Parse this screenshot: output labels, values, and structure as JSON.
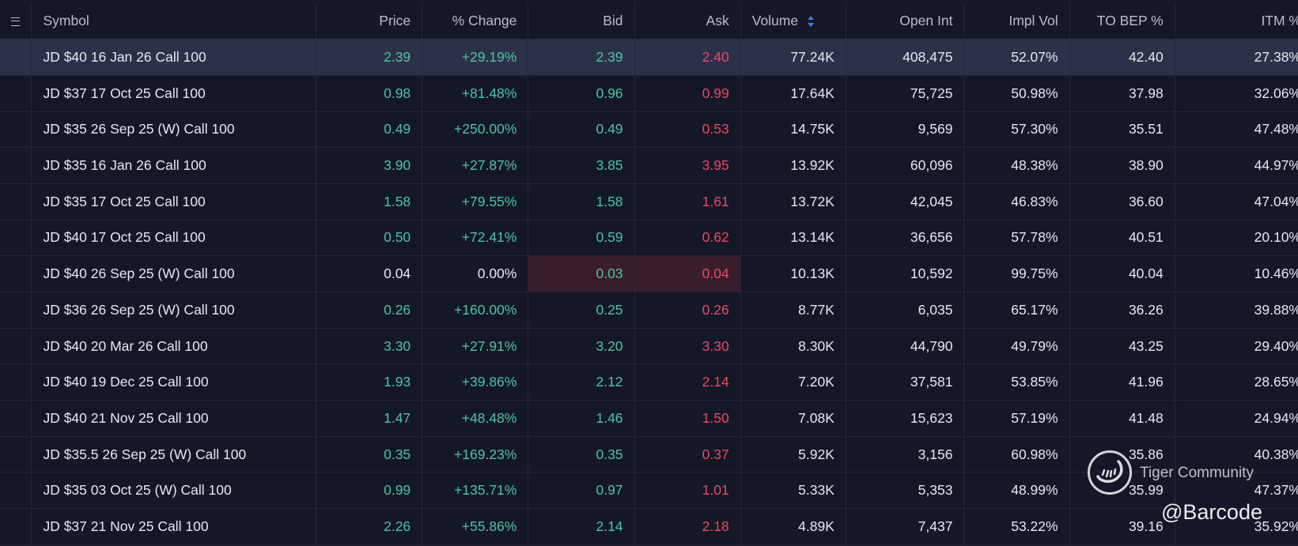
{
  "columns": [
    {
      "key": "symbol",
      "label": "Symbol"
    },
    {
      "key": "price",
      "label": "Price"
    },
    {
      "key": "change",
      "label": "% Change"
    },
    {
      "key": "bid",
      "label": "Bid"
    },
    {
      "key": "ask",
      "label": "Ask"
    },
    {
      "key": "volume",
      "label": "Volume"
    },
    {
      "key": "open_int",
      "label": "Open Int"
    },
    {
      "key": "impl_vol",
      "label": "Impl Vol"
    },
    {
      "key": "to_bep",
      "label": "TO BEP %"
    },
    {
      "key": "itm",
      "label": "ITM %"
    }
  ],
  "sorted_column": "volume",
  "colors": {
    "positive": "#4fc3a1",
    "negative": "#e8486a",
    "neutral": "#e6e8ef",
    "selected_row": "#2b3149",
    "flash_cell": "#3a1d2b",
    "sort_indicator": "#4a78d8"
  },
  "rows": [
    {
      "symbol": "JD $40 16 Jan 26 Call 100",
      "price": "2.39",
      "change": "+29.19%",
      "bid": "2.39",
      "ask": "2.40",
      "volume": "77.24K",
      "open_int": "408,475",
      "impl_vol": "52.07%",
      "to_bep": "42.40",
      "itm": "27.38%",
      "selected": true
    },
    {
      "symbol": "JD $37 17 Oct 25 Call 100",
      "price": "0.98",
      "change": "+81.48%",
      "bid": "0.96",
      "ask": "0.99",
      "volume": "17.64K",
      "open_int": "75,725",
      "impl_vol": "50.98%",
      "to_bep": "37.98",
      "itm": "32.06%"
    },
    {
      "symbol": "JD $35 26 Sep 25 (W) Call 100",
      "price": "0.49",
      "change": "+250.00%",
      "bid": "0.49",
      "ask": "0.53",
      "volume": "14.75K",
      "open_int": "9,569",
      "impl_vol": "57.30%",
      "to_bep": "35.51",
      "itm": "47.48%"
    },
    {
      "symbol": "JD $35 16 Jan 26 Call 100",
      "price": "3.90",
      "change": "+27.87%",
      "bid": "3.85",
      "ask": "3.95",
      "volume": "13.92K",
      "open_int": "60,096",
      "impl_vol": "48.38%",
      "to_bep": "38.90",
      "itm": "44.97%"
    },
    {
      "symbol": "JD $35 17 Oct 25 Call 100",
      "price": "1.58",
      "change": "+79.55%",
      "bid": "1.58",
      "ask": "1.61",
      "volume": "13.72K",
      "open_int": "42,045",
      "impl_vol": "46.83%",
      "to_bep": "36.60",
      "itm": "47.04%"
    },
    {
      "symbol": "JD $40 17 Oct 25 Call 100",
      "price": "0.50",
      "change": "+72.41%",
      "bid": "0.59",
      "ask": "0.62",
      "volume": "13.14K",
      "open_int": "36,656",
      "impl_vol": "57.78%",
      "to_bep": "40.51",
      "itm": "20.10%"
    },
    {
      "symbol": "JD $40 26 Sep 25 (W) Call 100",
      "price": "0.04",
      "change": "0.00%",
      "bid": "0.03",
      "ask": "0.04",
      "volume": "10.13K",
      "open_int": "10,592",
      "impl_vol": "99.75%",
      "to_bep": "40.04",
      "itm": "10.46%",
      "neutral": true,
      "flash": true
    },
    {
      "symbol": "JD $36 26 Sep 25 (W) Call 100",
      "price": "0.26",
      "change": "+160.00%",
      "bid": "0.25",
      "ask": "0.26",
      "volume": "8.77K",
      "open_int": "6,035",
      "impl_vol": "65.17%",
      "to_bep": "36.26",
      "itm": "39.88%"
    },
    {
      "symbol": "JD $40 20 Mar 26 Call 100",
      "price": "3.30",
      "change": "+27.91%",
      "bid": "3.20",
      "ask": "3.30",
      "volume": "8.30K",
      "open_int": "44,790",
      "impl_vol": "49.79%",
      "to_bep": "43.25",
      "itm": "29.40%"
    },
    {
      "symbol": "JD $40 19 Dec 25 Call 100",
      "price": "1.93",
      "change": "+39.86%",
      "bid": "2.12",
      "ask": "2.14",
      "volume": "7.20K",
      "open_int": "37,581",
      "impl_vol": "53.85%",
      "to_bep": "41.96",
      "itm": "28.65%"
    },
    {
      "symbol": "JD $40 21 Nov 25 Call 100",
      "price": "1.47",
      "change": "+48.48%",
      "bid": "1.46",
      "ask": "1.50",
      "volume": "7.08K",
      "open_int": "15,623",
      "impl_vol": "57.19%",
      "to_bep": "41.48",
      "itm": "24.94%"
    },
    {
      "symbol": "JD $35.5 26 Sep 25 (W) Call 100",
      "price": "0.35",
      "change": "+169.23%",
      "bid": "0.35",
      "ask": "0.37",
      "volume": "5.92K",
      "open_int": "3,156",
      "impl_vol": "60.98%",
      "to_bep": "35.86",
      "itm": "40.38%"
    },
    {
      "symbol": "JD $35 03 Oct 25 (W) Call 100",
      "price": "0.99",
      "change": "+135.71%",
      "bid": "0.97",
      "ask": "1.01",
      "volume": "5.33K",
      "open_int": "5,353",
      "impl_vol": "48.99%",
      "to_bep": "35.99",
      "itm": "47.37%"
    },
    {
      "symbol": "JD $37 21 Nov 25 Call 100",
      "price": "2.26",
      "change": "+55.86%",
      "bid": "2.14",
      "ask": "2.18",
      "volume": "4.89K",
      "open_int": "7,437",
      "impl_vol": "53.22%",
      "to_bep": "39.16",
      "itm": "35.92%"
    }
  ],
  "watermark": {
    "brand": "Tiger Community",
    "handle": "@Barcode",
    "logo_icon": "tiger-logo-icon"
  }
}
